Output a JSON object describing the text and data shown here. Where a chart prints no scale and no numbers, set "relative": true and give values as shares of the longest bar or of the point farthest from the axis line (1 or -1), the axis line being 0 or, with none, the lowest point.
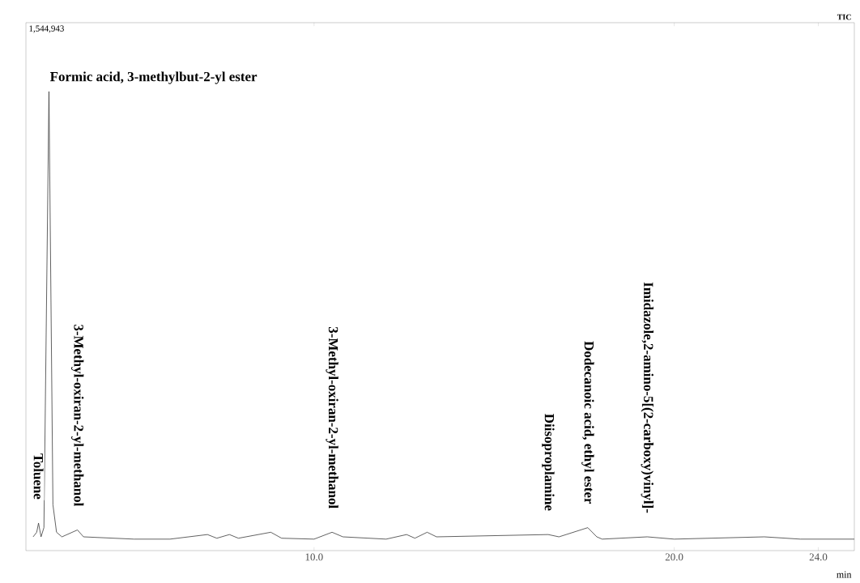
{
  "chart_data": {
    "type": "line",
    "relative": true,
    "color": "#3a3a3a",
    "xlabel": "min",
    "xlim": [
      2.0,
      25.0
    ],
    "xticks": [
      {
        "value": 10,
        "label": "10.0"
      },
      {
        "value": 20,
        "label": "20.0"
      },
      {
        "value": 24,
        "label": "24.0"
      }
    ],
    "x": [
      2.2,
      2.3,
      2.35,
      2.42,
      2.5,
      2.64,
      2.75,
      2.85,
      3.0,
      3.43,
      3.6,
      5.0,
      6.0,
      7.04,
      7.3,
      7.65,
      7.9,
      8.8,
      9.1,
      10.0,
      10.5,
      10.8,
      12.0,
      12.57,
      12.8,
      13.14,
      13.4,
      16.5,
      16.8,
      17.6,
      17.85,
      18.0,
      19.25,
      20.0,
      22.5,
      23.5,
      25.0
    ],
    "values": [
      0.03,
      0.04,
      0.06,
      0.03,
      0.05,
      1.0,
      0.1,
      0.04,
      0.03,
      0.045,
      0.03,
      0.025,
      0.025,
      0.035,
      0.027,
      0.035,
      0.027,
      0.04,
      0.027,
      0.025,
      0.04,
      0.03,
      0.025,
      0.035,
      0.027,
      0.04,
      0.03,
      0.035,
      0.03,
      0.05,
      0.03,
      0.025,
      0.03,
      0.025,
      0.03,
      0.025,
      0.025
    ],
    "annotations": [
      "1,544,943",
      "TIC",
      {
        "text": "Formic acid, 3-methylbut-2-yl ester",
        "x": 2.64,
        "y": 1.0
      },
      {
        "text": "Toluene",
        "x": 2.35,
        "y": 0.06
      },
      {
        "text": "3-Methyl-oxiran-2-yl-methanol",
        "x": 3.43,
        "y": 0.045
      },
      {
        "text": "3-Methyl-oxiran-2-yl-methanol",
        "x": 10.5,
        "y": 0.04
      },
      {
        "text": "Diisoproplamine",
        "x": 16.5,
        "y": 0.035
      },
      {
        "text": "Dodecanoic acid, ethyl ester",
        "x": 17.6,
        "y": 0.05
      },
      {
        "text": "Imidazole,2-amino-5[(2-carboxy)vinyl]-",
        "x": 19.25,
        "y": 0.03
      }
    ]
  }
}
